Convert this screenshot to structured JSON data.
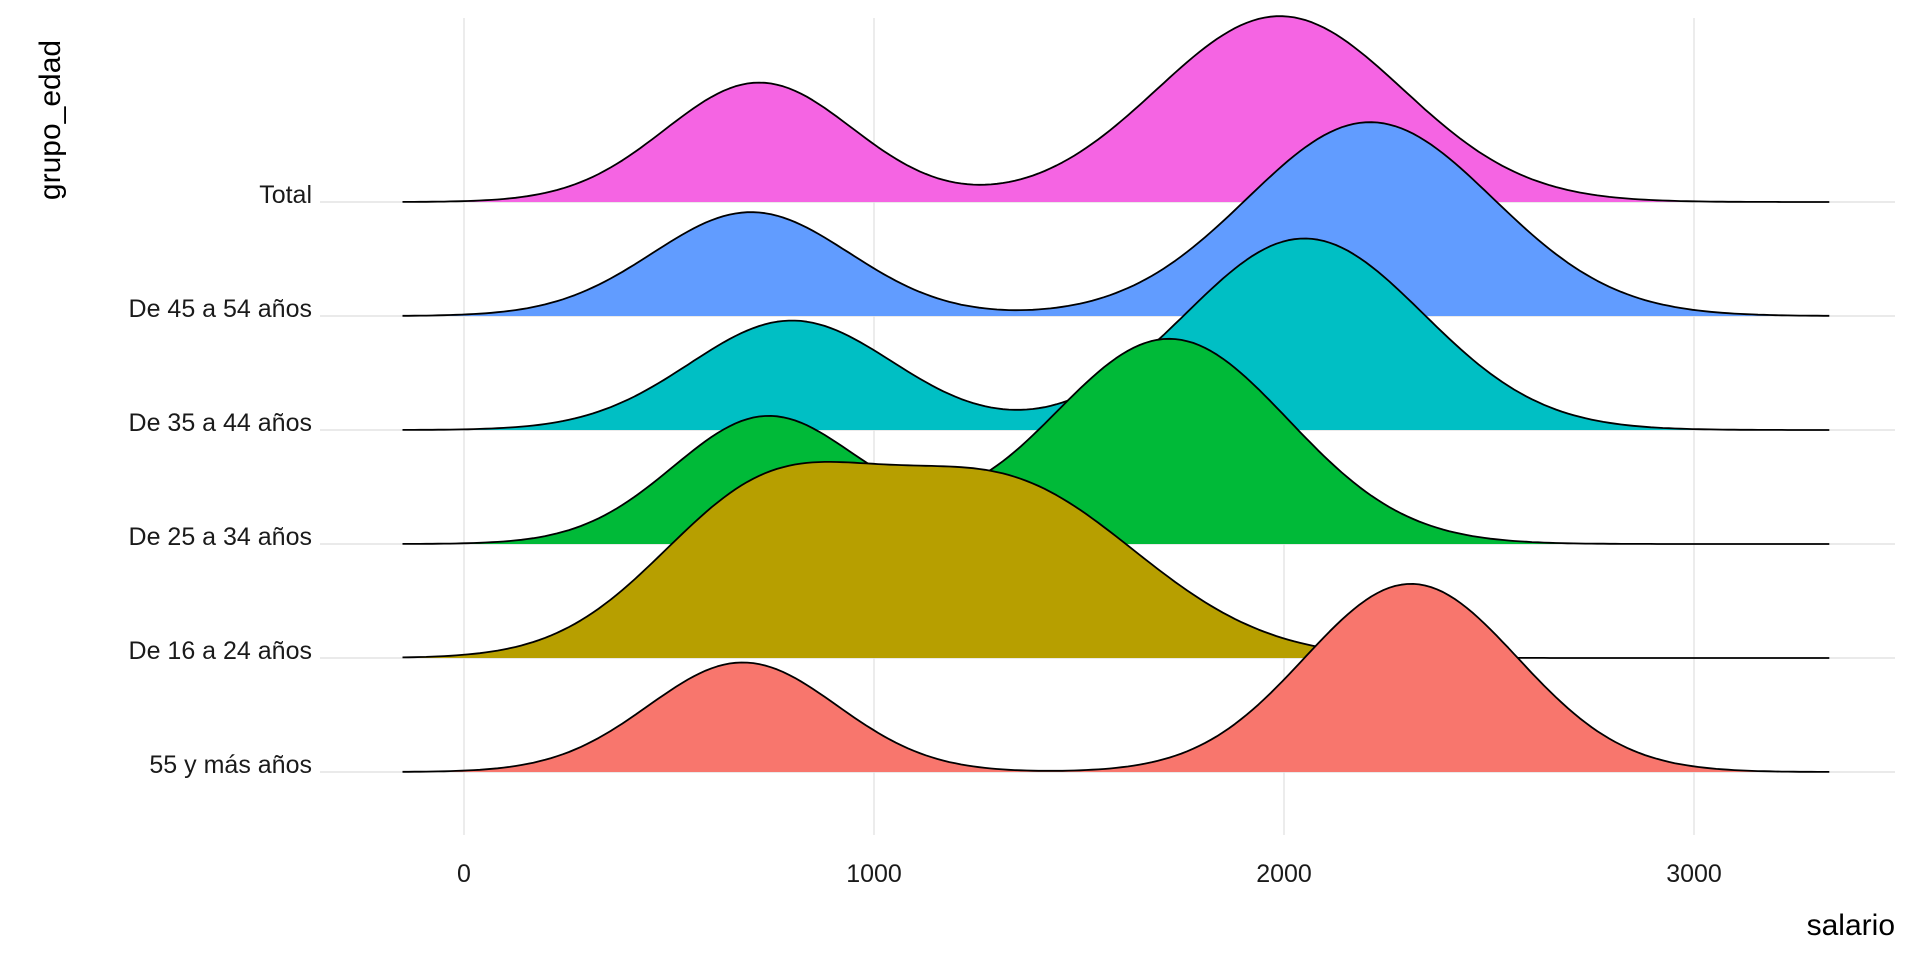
{
  "chart_data": {
    "type": "ridgeline",
    "xlabel": "salario",
    "ylabel": "grupo_edad",
    "xlim": [
      -150,
      3330
    ],
    "x_ticks": [
      0,
      1000,
      2000,
      3000
    ],
    "x_tick_labels": [
      "0",
      "1000",
      "2000",
      "3000"
    ],
    "grid": true,
    "legend": "none",
    "series": [
      {
        "name": "55 y más años",
        "color": "#F8766D",
        "components": [
          {
            "weight": 0.34,
            "mean": 680,
            "sd": 230
          },
          {
            "weight": 0.66,
            "mean": 2310,
            "sd": 260
          }
        ],
        "peak_height": 1.65
      },
      {
        "name": "De 16 a 24 años",
        "color": "#B79F00",
        "components": [
          {
            "weight": 0.4,
            "mean": 720,
            "sd": 260
          },
          {
            "weight": 0.6,
            "mean": 1310,
            "sd": 330
          }
        ],
        "peak_height": 1.72
      },
      {
        "name": "De 25 a 34 años",
        "color": "#00BA38",
        "components": [
          {
            "weight": 0.33,
            "mean": 740,
            "sd": 230
          },
          {
            "weight": 0.67,
            "mean": 1720,
            "sd": 290
          }
        ],
        "peak_height": 1.8
      },
      {
        "name": "De 35 a 44 años",
        "color": "#00BFC4",
        "components": [
          {
            "weight": 0.33,
            "mean": 800,
            "sd": 250
          },
          {
            "weight": 0.67,
            "mean": 2050,
            "sd": 290
          }
        ],
        "peak_height": 1.68
      },
      {
        "name": "De 45 a 54 años",
        "color": "#619CFF",
        "components": [
          {
            "weight": 0.3,
            "mean": 700,
            "sd": 240
          },
          {
            "weight": 0.7,
            "mean": 2210,
            "sd": 300
          }
        ],
        "peak_height": 1.7
      },
      {
        "name": "Total",
        "color": "#F564E3",
        "components": [
          {
            "weight": 0.33,
            "mean": 720,
            "sd": 230
          },
          {
            "weight": 0.67,
            "mean": 1990,
            "sd": 300
          }
        ],
        "peak_height": 1.63
      }
    ]
  }
}
